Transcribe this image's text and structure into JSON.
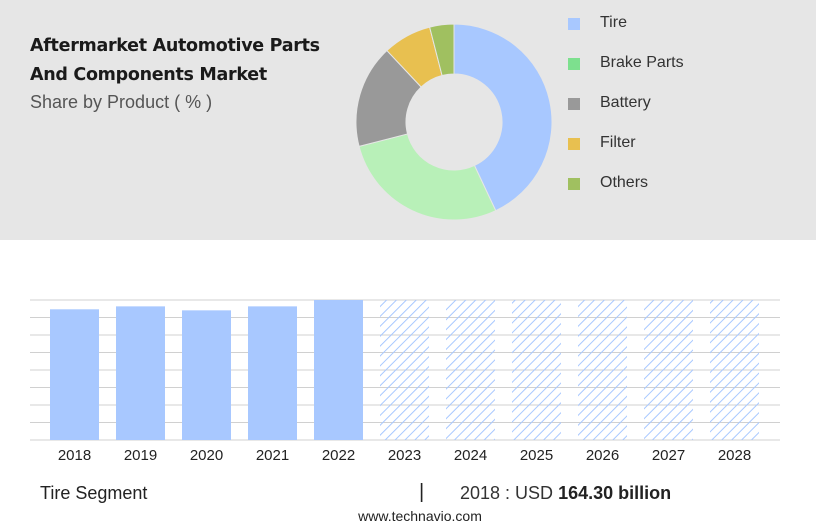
{
  "title_line1": "Aftermarket Automotive Parts",
  "title_line2": "And Components Market",
  "subtitle": "Share by Product ( % )",
  "footer": {
    "segment": "Tire Segment",
    "separator": "|",
    "year_prefix": "2018 : USD",
    "value_text": "164.30 billion",
    "site": "www.technavio.com"
  },
  "chart_data": [
    {
      "type": "pie",
      "style": "donut",
      "categories": [
        "Tire",
        "Brake Parts",
        "Battery",
        "Filter",
        "Others"
      ],
      "values": [
        43,
        28,
        17,
        8,
        4
      ],
      "colors": [
        "#a8c8ff",
        "#b8f0b8",
        "#999999",
        "#e8c050",
        "#a0c060"
      ],
      "legend_colors": [
        "#a8c8ff",
        "#7de08e",
        "#999999",
        "#e8c050",
        "#a0c060"
      ],
      "legend_position": "right"
    },
    {
      "type": "bar",
      "categories": [
        "2018",
        "2019",
        "2020",
        "2021",
        "2022",
        "2023",
        "2024",
        "2025",
        "2026",
        "2027",
        "2028"
      ],
      "values": [
        164.3,
        168,
        163,
        168,
        176,
        176,
        176,
        176,
        176,
        176,
        176
      ],
      "forecast_from": "2023",
      "ylim": [
        0,
        176
      ],
      "grid": true,
      "color": "#a8c8ff"
    }
  ]
}
